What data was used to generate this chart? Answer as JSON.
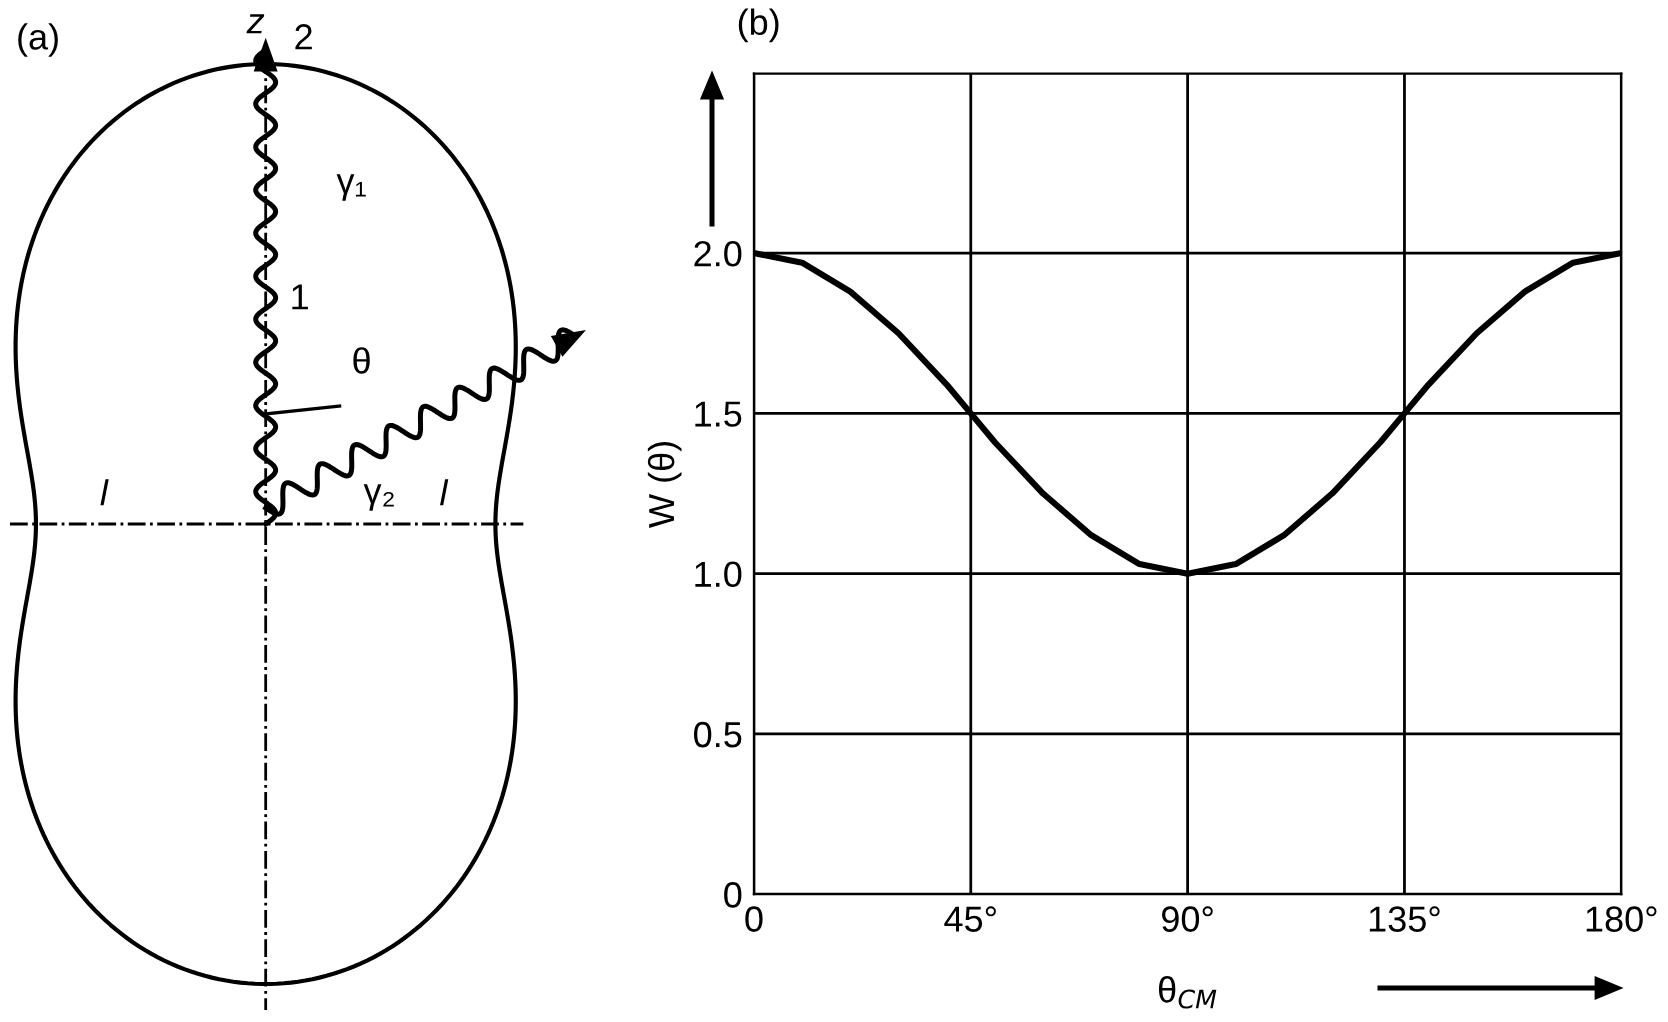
{
  "chart_data": [
    {
      "type": "other",
      "title": "(a)",
      "annotations": [
        "z",
        "2",
        "γ₁",
        "1",
        "θ",
        "γ₂",
        "l",
        "l"
      ]
    },
    {
      "type": "line",
      "title": "(b)",
      "xlabel": "θ$_{CM}$",
      "ylabel": "W (θ)",
      "x": [
        0,
        10,
        20,
        30,
        40,
        45,
        50,
        60,
        70,
        80,
        90,
        100,
        110,
        120,
        130,
        135,
        140,
        150,
        160,
        170,
        180
      ],
      "series": [
        {
          "color": "#000000",
          "values": [
            2.0,
            1.97,
            1.88,
            1.75,
            1.59,
            1.5,
            1.41,
            1.25,
            1.12,
            1.03,
            1.0,
            1.03,
            1.12,
            1.25,
            1.41,
            1.5,
            1.59,
            1.75,
            1.88,
            1.97,
            2.0
          ]
        }
      ],
      "xlim": [
        0,
        180
      ],
      "ylim": [
        0,
        2.56
      ],
      "xticks": [
        0,
        {
          "value": 45,
          "label": "45°"
        },
        {
          "value": 90,
          "label": "90°"
        },
        {
          "value": 135,
          "label": "135°"
        },
        {
          "value": 180,
          "label": "180°"
        }
      ],
      "yticks": [
        0,
        0.5,
        {
          "value": 1,
          "label": "1.0"
        },
        {
          "value": 1.5,
          "label": "1.5"
        },
        {
          "value": 2,
          "label": "2.0"
        }
      ],
      "grid": true,
      "line_style": "solid"
    }
  ]
}
